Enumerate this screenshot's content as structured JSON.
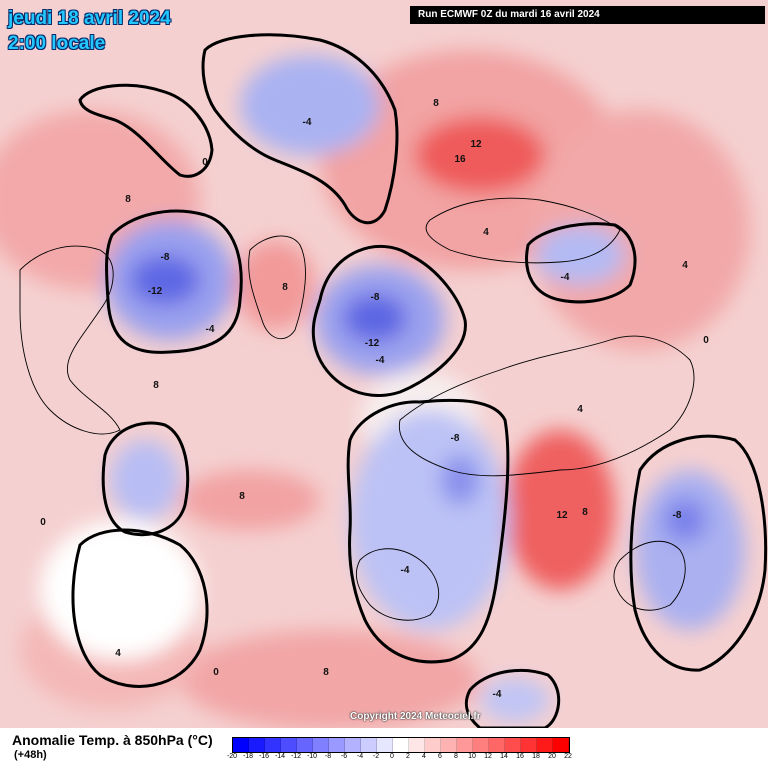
{
  "header": {
    "date": "jeudi 18 avril 2024",
    "local_time": "2:00 locale",
    "run_info": "Run ECMWF 0Z du mardi 16 avril 2024"
  },
  "footer": {
    "variable": "Anomalie Temp. à 850hPa (°C)",
    "lead_time": "(+48h)",
    "copyright": "Copyright 2024 Meteociel.fr"
  },
  "colors": {
    "cold_extreme": "#0000ff",
    "cold_mid": "#7f7fff",
    "neutral": "#ffffff",
    "warm_mid": "#ff7f7f",
    "warm_extreme": "#ff0000",
    "land_outline": "#000000"
  },
  "colorbar": {
    "labels": [
      "-20",
      "-18",
      "-16",
      "-14",
      "-12",
      "-10",
      "-8",
      "-6",
      "-4",
      "-2",
      "0",
      "2",
      "4",
      "6",
      "8",
      "10",
      "12",
      "14",
      "16",
      "18",
      "20",
      "22"
    ],
    "colors": [
      "#0000ff",
      "#1a1aff",
      "#3333ff",
      "#4d4dff",
      "#6666ff",
      "#7f7fff",
      "#9999ff",
      "#b2b2ff",
      "#ccccff",
      "#e6e6ff",
      "#ffffff",
      "#ffe6e6",
      "#ffcccc",
      "#ffb2b2",
      "#ff9999",
      "#ff7f7f",
      "#ff6666",
      "#ff4d4d",
      "#ff3333",
      "#ff1a1a",
      "#ff0000"
    ]
  },
  "contour_labels": [
    {
      "text": "-12"
    },
    {
      "text": "-8"
    },
    {
      "text": "-4"
    },
    {
      "text": "-12"
    },
    {
      "text": "-8"
    },
    {
      "text": "-4"
    },
    {
      "text": "16"
    },
    {
      "text": "12"
    },
    {
      "text": "8"
    },
    {
      "text": "12"
    },
    {
      "text": "8"
    },
    {
      "text": "4"
    },
    {
      "text": "-8"
    },
    {
      "text": "-4"
    },
    {
      "text": "-8"
    },
    {
      "text": "-4"
    },
    {
      "text": "-4"
    },
    {
      "text": "-4"
    },
    {
      "text": "8"
    },
    {
      "text": "8"
    },
    {
      "text": "8"
    },
    {
      "text": "8"
    },
    {
      "text": "8"
    },
    {
      "text": "4"
    },
    {
      "text": "4"
    },
    {
      "text": "4"
    },
    {
      "text": "0"
    },
    {
      "text": "0"
    },
    {
      "text": "0"
    },
    {
      "text": "0"
    }
  ]
}
